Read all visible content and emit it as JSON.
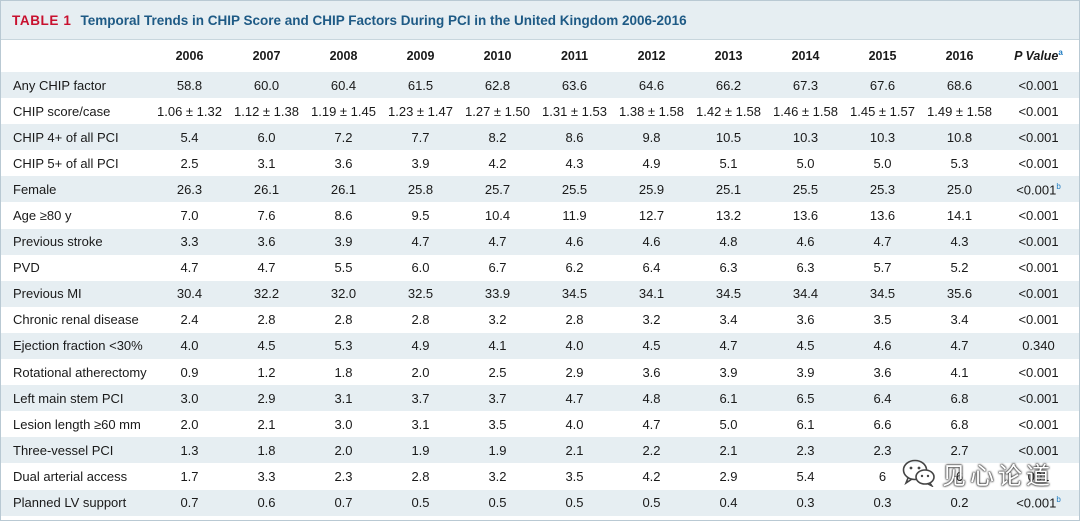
{
  "header": {
    "tag": "TABLE 1",
    "title": "Temporal Trends in CHIP Score and CHIP Factors During PCI in the United Kingdom 2006-2016"
  },
  "columns": [
    "2006",
    "2007",
    "2008",
    "2009",
    "2010",
    "2011",
    "2012",
    "2013",
    "2014",
    "2015",
    "2016"
  ],
  "p_header": {
    "label": "P Value",
    "sup": "a"
  },
  "rows": [
    {
      "label": "Any CHIP factor",
      "values": [
        "58.8",
        "60.0",
        "60.4",
        "61.5",
        "62.8",
        "63.6",
        "64.6",
        "66.2",
        "67.3",
        "67.6",
        "68.6"
      ],
      "p": "<0.001",
      "sup": ""
    },
    {
      "label": "CHIP score/case",
      "values": [
        "1.06 ± 1.32",
        "1.12 ± 1.38",
        "1.19 ± 1.45",
        "1.23 ± 1.47",
        "1.27 ± 1.50",
        "1.31 ± 1.53",
        "1.38 ± 1.58",
        "1.42 ± 1.58",
        "1.46 ± 1.58",
        "1.45 ± 1.57",
        "1.49 ± 1.58"
      ],
      "p": "<0.001",
      "sup": ""
    },
    {
      "label": "CHIP 4+ of all PCI",
      "values": [
        "5.4",
        "6.0",
        "7.2",
        "7.7",
        "8.2",
        "8.6",
        "9.8",
        "10.5",
        "10.3",
        "10.3",
        "10.8"
      ],
      "p": "<0.001",
      "sup": ""
    },
    {
      "label": "CHIP 5+ of all PCI",
      "values": [
        "2.5",
        "3.1",
        "3.6",
        "3.9",
        "4.2",
        "4.3",
        "4.9",
        "5.1",
        "5.0",
        "5.0",
        "5.3"
      ],
      "p": "<0.001",
      "sup": ""
    },
    {
      "label": "Female",
      "values": [
        "26.3",
        "26.1",
        "26.1",
        "25.8",
        "25.7",
        "25.5",
        "25.9",
        "25.1",
        "25.5",
        "25.3",
        "25.0"
      ],
      "p": "<0.001",
      "sup": "b"
    },
    {
      "label": "Age ≥80 y",
      "values": [
        "7.0",
        "7.6",
        "8.6",
        "9.5",
        "10.4",
        "11.9",
        "12.7",
        "13.2",
        "13.6",
        "13.6",
        "14.1"
      ],
      "p": "<0.001",
      "sup": ""
    },
    {
      "label": "Previous stroke",
      "values": [
        "3.3",
        "3.6",
        "3.9",
        "4.7",
        "4.7",
        "4.6",
        "4.6",
        "4.8",
        "4.6",
        "4.7",
        "4.3"
      ],
      "p": "<0.001",
      "sup": ""
    },
    {
      "label": "PVD",
      "values": [
        "4.7",
        "4.7",
        "5.5",
        "6.0",
        "6.7",
        "6.2",
        "6.4",
        "6.3",
        "6.3",
        "5.7",
        "5.2"
      ],
      "p": "<0.001",
      "sup": ""
    },
    {
      "label": "Previous MI",
      "values": [
        "30.4",
        "32.2",
        "32.0",
        "32.5",
        "33.9",
        "34.5",
        "34.1",
        "34.5",
        "34.4",
        "34.5",
        "35.6"
      ],
      "p": "<0.001",
      "sup": ""
    },
    {
      "label": "Chronic renal disease",
      "values": [
        "2.4",
        "2.8",
        "2.8",
        "2.8",
        "3.2",
        "2.8",
        "3.2",
        "3.4",
        "3.6",
        "3.5",
        "3.4"
      ],
      "p": "<0.001",
      "sup": ""
    },
    {
      "label": "Ejection fraction <30%",
      "values": [
        "4.0",
        "4.5",
        "5.3",
        "4.9",
        "4.1",
        "4.0",
        "4.5",
        "4.7",
        "4.5",
        "4.6",
        "4.7"
      ],
      "p": "0.340",
      "sup": ""
    },
    {
      "label": "Rotational atherectomy",
      "values": [
        "0.9",
        "1.2",
        "1.8",
        "2.0",
        "2.5",
        "2.9",
        "3.6",
        "3.9",
        "3.9",
        "3.6",
        "4.1"
      ],
      "p": "<0.001",
      "sup": ""
    },
    {
      "label": "Left main stem PCI",
      "values": [
        "3.0",
        "2.9",
        "3.1",
        "3.7",
        "3.7",
        "4.7",
        "4.8",
        "6.1",
        "6.5",
        "6.4",
        "6.8"
      ],
      "p": "<0.001",
      "sup": ""
    },
    {
      "label": "Lesion length ≥60 mm",
      "values": [
        "2.0",
        "2.1",
        "3.0",
        "3.1",
        "3.5",
        "4.0",
        "4.7",
        "5.0",
        "6.1",
        "6.6",
        "6.8"
      ],
      "p": "<0.001",
      "sup": ""
    },
    {
      "label": "Three-vessel PCI",
      "values": [
        "1.3",
        "1.8",
        "2.0",
        "1.9",
        "1.9",
        "2.1",
        "2.2",
        "2.1",
        "2.3",
        "2.3",
        "2.7"
      ],
      "p": "<0.001",
      "sup": ""
    },
    {
      "label": "Dual arterial access",
      "values": [
        "1.7",
        "3.3",
        "2.3",
        "2.8",
        "3.2",
        "3.5",
        "4.2",
        "2.9",
        "5.4",
        "6",
        "6"
      ],
      "p": "001",
      "sup": ""
    },
    {
      "label": "Planned LV support",
      "values": [
        "0.7",
        "0.6",
        "0.7",
        "0.5",
        "0.5",
        "0.5",
        "0.5",
        "0.4",
        "0.3",
        "0.3",
        "0.2"
      ],
      "p": "<0.001",
      "sup": "b"
    }
  ],
  "watermark": {
    "text": "见心论道",
    "icon": "wechat-icon"
  },
  "colors": {
    "tag": "#c8102e",
    "title": "#1e5a85",
    "shade": "#e6eef2",
    "sup": "#1e7bc0"
  }
}
